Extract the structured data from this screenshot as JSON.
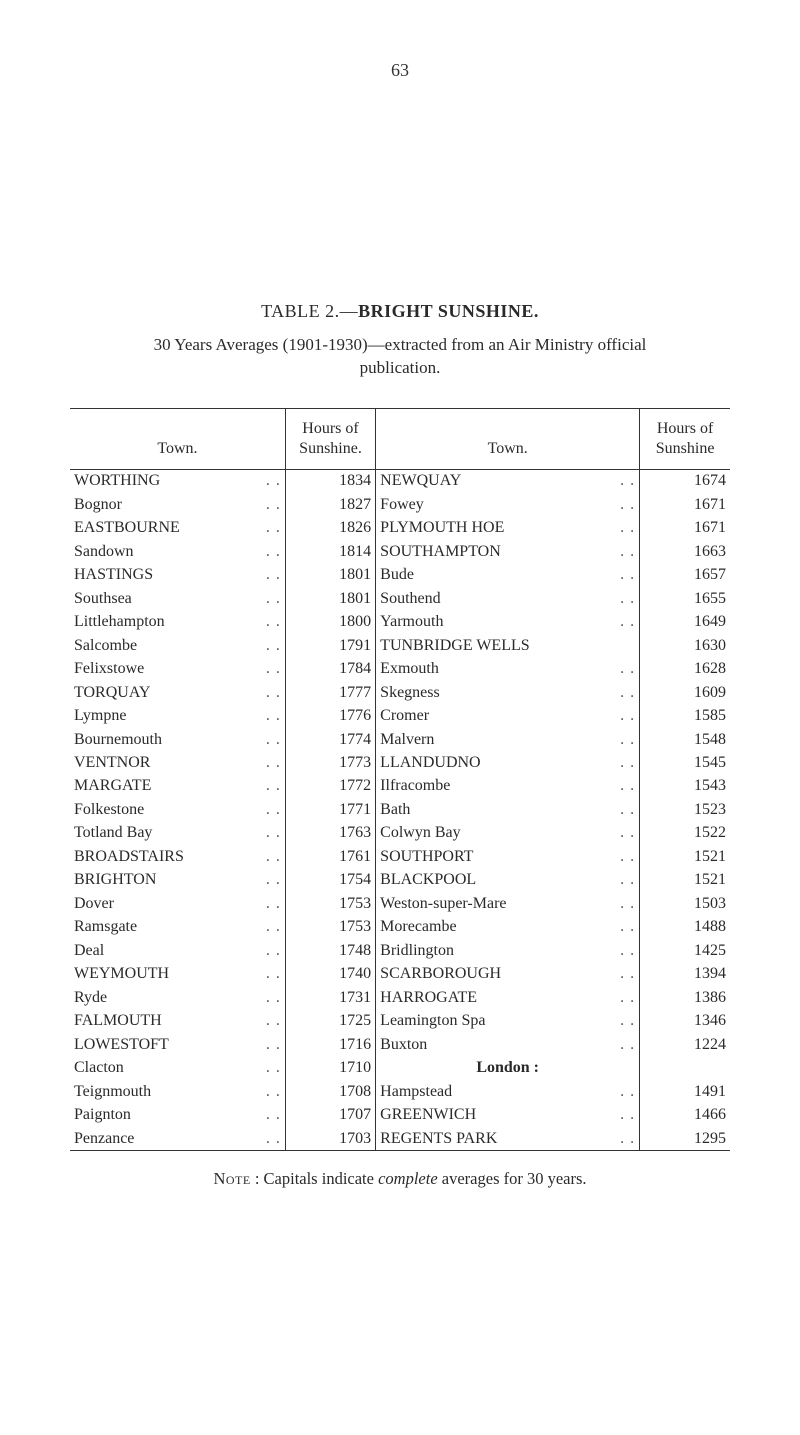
{
  "page_number": "63",
  "title_prefix": "TABLE 2.—",
  "title_bold": "BRIGHT SUNSHINE.",
  "subtitle_line1": "30 Years Averages (1901-1930)—extracted from an Air Ministry official",
  "subtitle_line2": "publication.",
  "headers": {
    "town": "Town.",
    "hours_line1": "Hours of",
    "hours_line2": "Sunshine.",
    "hours2_line1": "Hours of",
    "hours2_line2": "Sunshine"
  },
  "left_rows": [
    {
      "town": "WORTHING",
      "hours": "1834"
    },
    {
      "town": "Bognor",
      "hours": "1827"
    },
    {
      "town": "EASTBOURNE",
      "hours": "1826"
    },
    {
      "town": "Sandown",
      "hours": "1814"
    },
    {
      "town": "HASTINGS",
      "hours": "1801"
    },
    {
      "town": "Southsea",
      "hours": "1801"
    },
    {
      "town": "Littlehampton",
      "hours": "1800"
    },
    {
      "town": "Salcombe",
      "hours": "1791"
    },
    {
      "town": "Felixstowe",
      "hours": "1784"
    },
    {
      "town": "TORQUAY",
      "hours": "1777"
    },
    {
      "town": "Lympne",
      "hours": "1776"
    },
    {
      "town": "Bournemouth",
      "hours": "1774"
    },
    {
      "town": "VENTNOR",
      "hours": "1773"
    },
    {
      "town": "MARGATE",
      "hours": "1772"
    },
    {
      "town": "Folkestone",
      "hours": "1771"
    },
    {
      "town": "Totland Bay",
      "hours": "1763"
    },
    {
      "town": "BROADSTAIRS",
      "hours": "1761"
    },
    {
      "town": "BRIGHTON",
      "hours": "1754"
    },
    {
      "town": "Dover",
      "hours": "1753"
    },
    {
      "town": "Ramsgate",
      "hours": "1753"
    },
    {
      "town": "Deal",
      "hours": "1748"
    },
    {
      "town": "WEYMOUTH",
      "hours": "1740"
    },
    {
      "town": "Ryde",
      "hours": "1731"
    },
    {
      "town": "FALMOUTH",
      "hours": "1725"
    },
    {
      "town": "LOWESTOFT",
      "hours": "1716"
    },
    {
      "town": "Clacton",
      "hours": "1710"
    },
    {
      "town": "Teignmouth",
      "hours": "1708"
    },
    {
      "town": "Paignton",
      "hours": "1707"
    },
    {
      "town": "Penzance",
      "hours": "1703"
    }
  ],
  "right_rows": [
    {
      "town": "NEWQUAY",
      "hours": "1674"
    },
    {
      "town": "Fowey",
      "hours": "1671"
    },
    {
      "town": "PLYMOUTH HOE",
      "hours": "1671"
    },
    {
      "town": "SOUTHAMPTON",
      "hours": "1663"
    },
    {
      "town": "Bude",
      "hours": "1657"
    },
    {
      "town": "Southend",
      "hours": "1655"
    },
    {
      "town": "Yarmouth",
      "hours": "1649"
    },
    {
      "town": "TUNBRIDGE WELLS",
      "hours": "1630",
      "no_dots": true
    },
    {
      "town": "Exmouth",
      "hours": "1628"
    },
    {
      "town": "Skegness",
      "hours": "1609"
    },
    {
      "town": "Cromer",
      "hours": "1585"
    },
    {
      "town": "Malvern",
      "hours": "1548"
    },
    {
      "town": "LLANDUDNO",
      "hours": "1545"
    },
    {
      "town": "Ilfracombe",
      "hours": "1543"
    },
    {
      "town": "Bath",
      "hours": "1523"
    },
    {
      "town": "Colwyn Bay",
      "hours": "1522"
    },
    {
      "town": "SOUTHPORT",
      "hours": "1521"
    },
    {
      "town": "BLACKPOOL",
      "hours": "1521"
    },
    {
      "town": "Weston-super-Mare",
      "hours": "1503"
    },
    {
      "town": "Morecambe",
      "hours": "1488"
    },
    {
      "town": "Bridlington",
      "hours": "1425"
    },
    {
      "town": "SCARBOROUGH",
      "hours": "1394"
    },
    {
      "town": "HARROGATE",
      "hours": "1386"
    },
    {
      "town": "Leamington Spa",
      "hours": "1346"
    },
    {
      "town": "Buxton",
      "hours": "1224"
    },
    {
      "town": "London :",
      "hours": "",
      "is_header": true
    },
    {
      "town": "Hampstead",
      "hours": "1491"
    },
    {
      "town": "GREENWICH",
      "hours": "1466"
    },
    {
      "town": "REGENTS PARK",
      "hours": "1295"
    }
  ],
  "footnote_prefix": "Note",
  "footnote_sep": " : ",
  "footnote_text1": "Capitals indicate ",
  "footnote_italic": "complete",
  "footnote_text2": " averages for 30 years.",
  "dots": ". ."
}
